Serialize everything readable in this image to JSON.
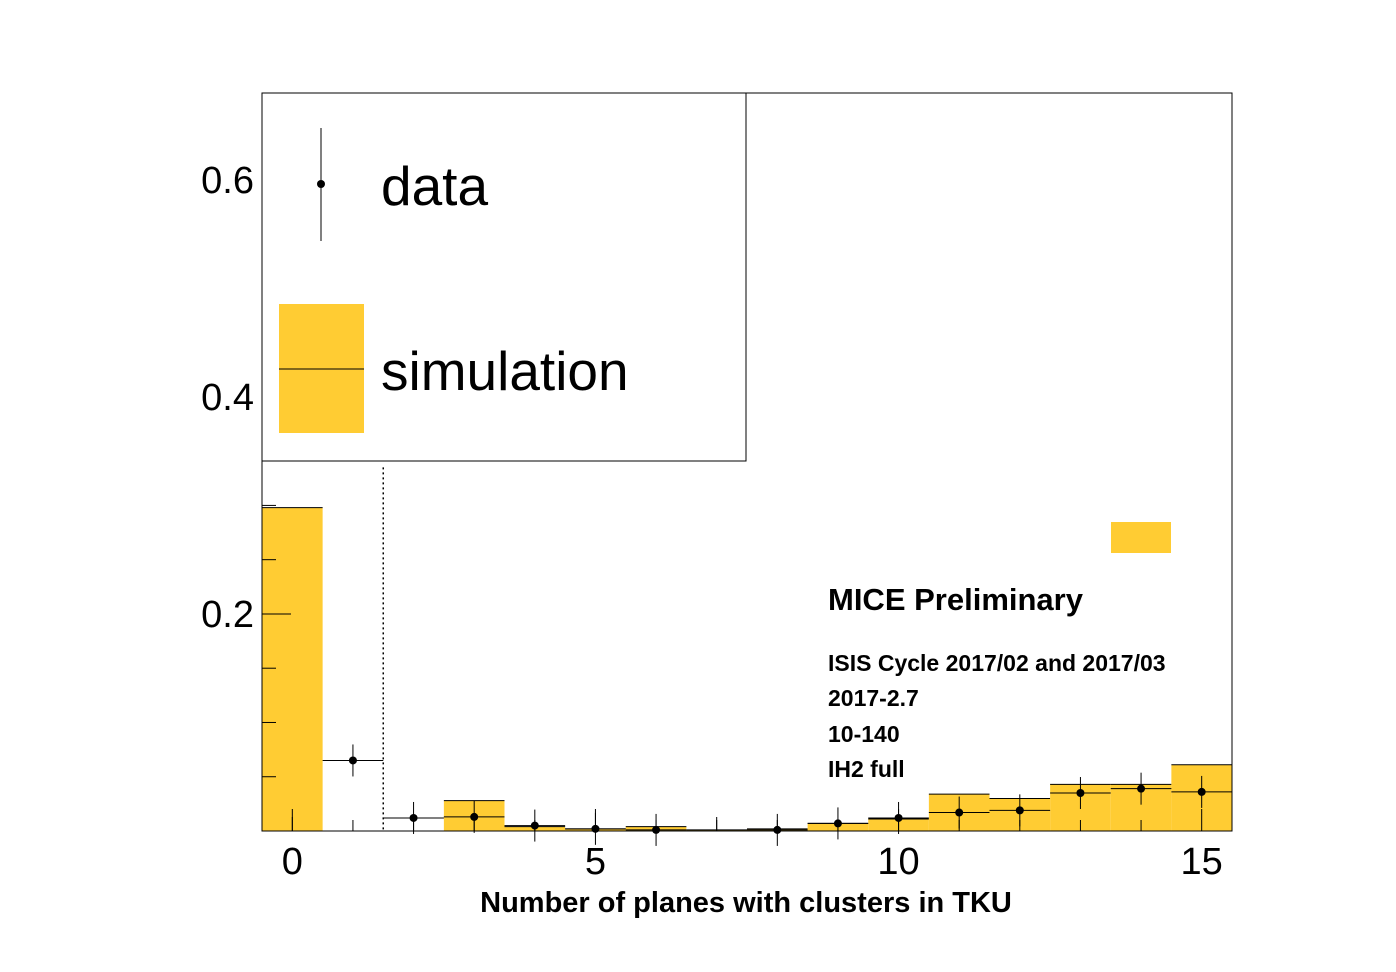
{
  "chart_data": {
    "type": "bar",
    "xlabel": "Number of planes with clusters in TKU",
    "ylabel": "",
    "xlim": [
      -0.5,
      15.5
    ],
    "ylim": [
      0,
      0.68
    ],
    "x_ticks": [
      0,
      5,
      10,
      15
    ],
    "x_tick_labels": [
      "0",
      "5",
      "10",
      "15"
    ],
    "y_ticks": [
      0.2,
      0.4,
      0.6
    ],
    "y_tick_labels": [
      "0.2",
      "0.4",
      "0.6"
    ],
    "cut_line_x": 1.5,
    "series": [
      {
        "name": "simulation",
        "style": "filled histogram",
        "color": "#ffcc33",
        "x": [
          0,
          1,
          2,
          3,
          4,
          5,
          6,
          7,
          8,
          9,
          10,
          11,
          12,
          13,
          14,
          15
        ],
        "values": [
          0.298,
          0.0,
          0.0,
          0.028,
          0.004,
          0.002,
          0.004,
          0.001,
          0.002,
          0.007,
          0.011,
          0.034,
          0.03,
          0.043,
          0.043,
          0.061
        ]
      },
      {
        "name": "data",
        "style": "points with error bars",
        "color": "#000000",
        "x": [
          0,
          1,
          2,
          3,
          4,
          5,
          6,
          7,
          8,
          9,
          10,
          11,
          12,
          13,
          14,
          15
        ],
        "values": [
          0.0,
          0.065,
          0.012,
          0.013,
          0.005,
          0.002,
          0.001,
          0.0,
          0.001,
          0.007,
          0.012,
          0.017,
          0.019,
          0.035,
          0.039,
          0.036
        ]
      }
    ],
    "legend_placement": "top-left",
    "annotations": {
      "headline": "MICE Preliminary",
      "lines": [
        "ISIS Cycle 2017/02 and 2017/03",
        "2017-2.7",
        "10-140",
        "IH2 full"
      ]
    }
  }
}
